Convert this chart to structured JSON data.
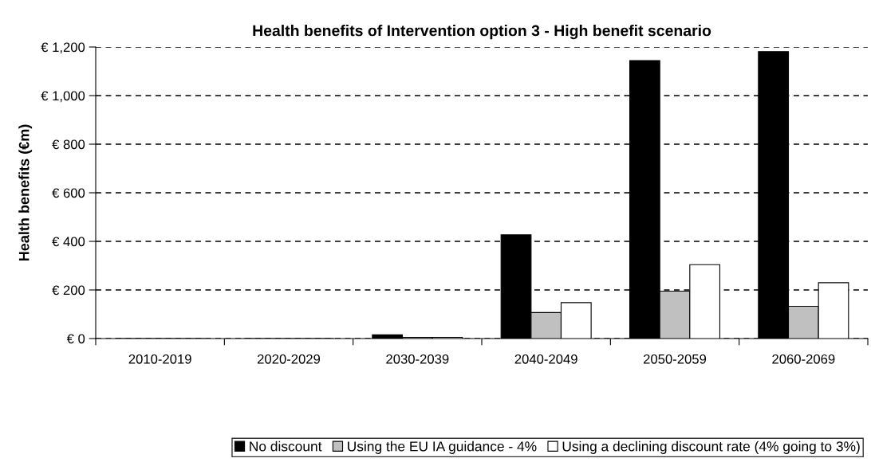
{
  "chart_data": {
    "type": "bar",
    "title": "Health benefits of Intervention option 3 - High benefit scenario",
    "ylabel": "Health benefits (€m)",
    "categories": [
      "2010-2019",
      "2020-2029",
      "2030-2039",
      "2040-2049",
      "2050-2059",
      "2060-2069"
    ],
    "series": [
      {
        "name": "No discount",
        "color": "#000000",
        "values": [
          0,
          0,
          15,
          427,
          1144,
          1181
        ]
      },
      {
        "name": "Using the EU IA guidance - 4%",
        "color": "#c0c0c0",
        "values": [
          0,
          0,
          5,
          107,
          195,
          133
        ]
      },
      {
        "name": "Using a declining discount rate (4% going to 3%)",
        "color": "#ffffff",
        "values": [
          0,
          0,
          5,
          148,
          304,
          230
        ]
      }
    ],
    "ylim": [
      0,
      1200
    ],
    "yticks": [
      {
        "value": 0,
        "label": "€ 0"
      },
      {
        "value": 200,
        "label": "€ 200"
      },
      {
        "value": 400,
        "label": "€ 400"
      },
      {
        "value": 600,
        "label": "€ 600"
      },
      {
        "value": 800,
        "label": "€ 800"
      },
      {
        "value": 1000,
        "label": "€ 1,000"
      },
      {
        "value": 1200,
        "label": "€ 1,200"
      }
    ],
    "grid": "y",
    "legend": "bottom"
  }
}
